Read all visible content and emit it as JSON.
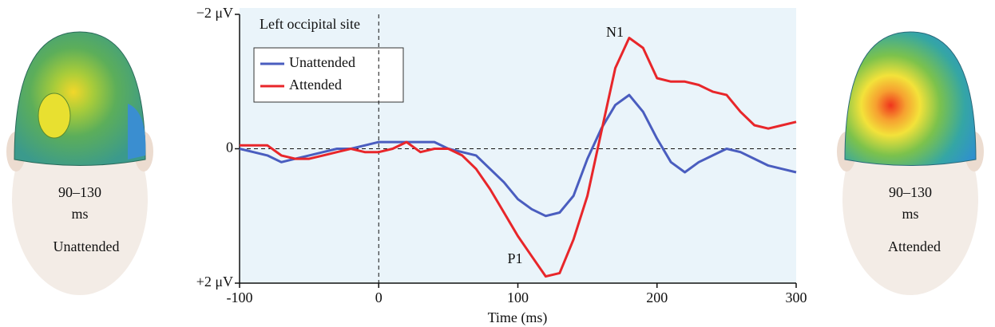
{
  "chart_data": {
    "type": "line",
    "title": "Left occipital site",
    "x": [
      -100,
      -90,
      -80,
      -70,
      -60,
      -50,
      -40,
      -30,
      -20,
      -10,
      0,
      10,
      20,
      30,
      40,
      50,
      60,
      70,
      80,
      90,
      100,
      110,
      120,
      130,
      140,
      150,
      160,
      170,
      180,
      190,
      200,
      210,
      220,
      230,
      240,
      250,
      260,
      270,
      280,
      290,
      300
    ],
    "series": [
      {
        "name": "Unattended",
        "color": "#4a5dbf",
        "values": [
          0,
          0.05,
          0.1,
          0.2,
          0.15,
          0.1,
          0.05,
          0,
          0,
          -0.05,
          -0.1,
          -0.1,
          -0.1,
          -0.1,
          -0.1,
          0,
          0.05,
          0.1,
          0.3,
          0.5,
          0.75,
          0.9,
          1.0,
          0.95,
          0.7,
          0.15,
          -0.3,
          -0.65,
          -0.8,
          -0.55,
          -0.15,
          0.2,
          0.35,
          0.2,
          0.1,
          0,
          0.05,
          0.15,
          0.25,
          0.3,
          0.35
        ]
      },
      {
        "name": "Attended",
        "color": "#e8262a",
        "values": [
          -0.05,
          -0.05,
          -0.05,
          0.1,
          0.15,
          0.15,
          0.1,
          0.05,
          0,
          0.05,
          0.05,
          0,
          -0.1,
          0.05,
          0,
          0,
          0.1,
          0.3,
          0.6,
          0.95,
          1.3,
          1.6,
          1.9,
          1.85,
          1.35,
          0.7,
          -0.25,
          -1.2,
          -1.65,
          -1.5,
          -1.05,
          -1.0,
          -1.0,
          -0.95,
          -0.85,
          -0.8,
          -0.55,
          -0.35,
          -0.3,
          -0.35,
          -0.4
        ]
      }
    ],
    "xlabel": "Time (ms)",
    "xlim": [
      -100,
      300
    ],
    "xticks": [
      -100,
      0,
      100,
      200,
      300
    ],
    "ylim": [
      2,
      -2
    ],
    "yticks": [
      {
        "value": -2,
        "label": "−2 μV"
      },
      0,
      {
        "value": 2,
        "label": "+2 μV"
      }
    ],
    "annotations": [
      "N1",
      "P1"
    ],
    "legend": "upper left"
  },
  "heads": [
    {
      "time": "90–130",
      "unit": "ms",
      "label": "Unattended"
    },
    {
      "time": "90–130",
      "unit": "ms",
      "label": "Attended"
    }
  ]
}
